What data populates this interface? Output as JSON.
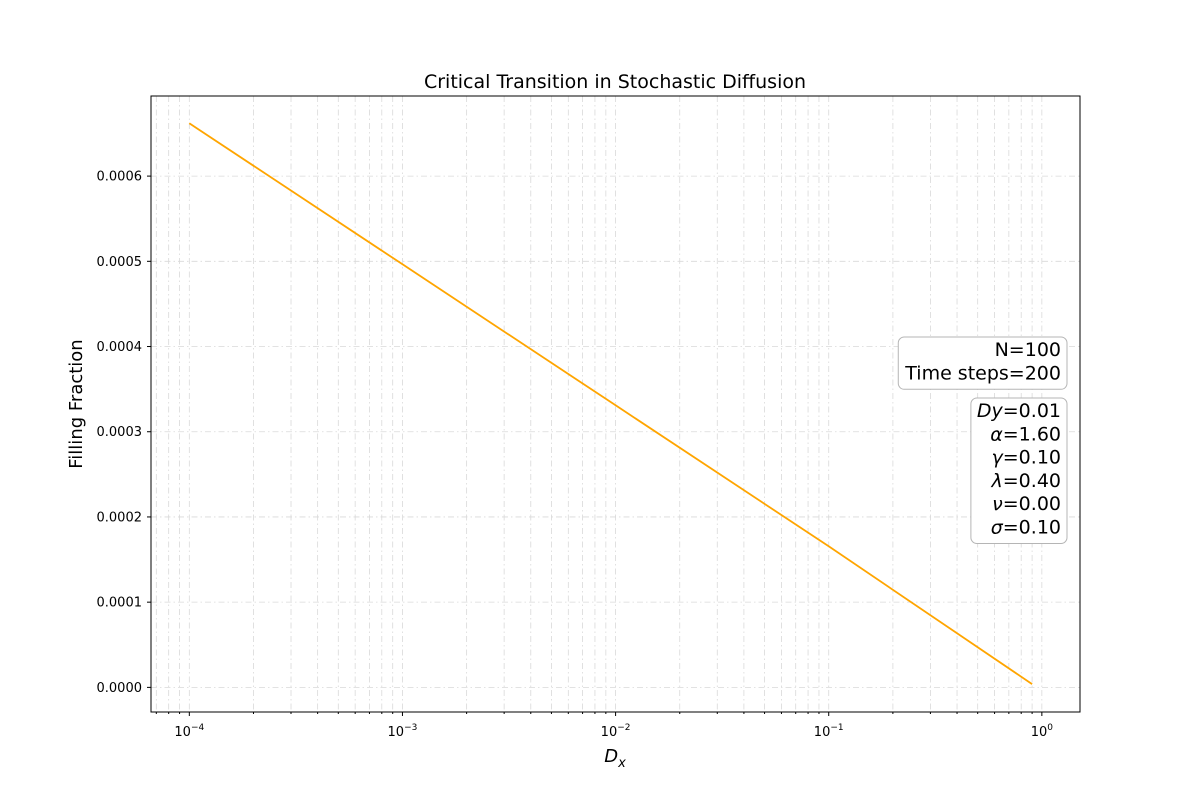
{
  "chart_data": {
    "type": "line",
    "title": "Critical Transition in Stochastic Diffusion",
    "xlabel": "D_x",
    "ylabel": "Filling Fraction",
    "xscale": "log",
    "xlim": [
      6.61e-05,
      1.51
    ],
    "ylim": [
      -2.89e-05,
      0.000694
    ],
    "grid": true,
    "x_ticks": [
      {
        "value": 0.0001,
        "base": "10",
        "exp": "−4"
      },
      {
        "value": 0.001,
        "base": "10",
        "exp": "−3"
      },
      {
        "value": 0.01,
        "base": "10",
        "exp": "−2"
      },
      {
        "value": 0.1,
        "base": "10",
        "exp": "−1"
      },
      {
        "value": 1,
        "base": "10",
        "exp": "0"
      }
    ],
    "y_ticks": [
      {
        "value": 0.0,
        "label": "0.0000"
      },
      {
        "value": 0.0001,
        "label": "0.0001"
      },
      {
        "value": 0.0002,
        "label": "0.0002"
      },
      {
        "value": 0.0003,
        "label": "0.0003"
      },
      {
        "value": 0.0004,
        "label": "0.0004"
      },
      {
        "value": 0.0005,
        "label": "0.0005"
      },
      {
        "value": 0.0006,
        "label": "0.0006"
      }
    ],
    "series": [
      {
        "color": "#FFA500",
        "x": [
          0.0001,
          0.001,
          0.01,
          0.1,
          0.9
        ],
        "y": [
          0.000662,
          0.0004965,
          0.000331,
          0.0001655,
          3.8e-06
        ]
      }
    ],
    "annotations": {
      "placement": "right",
      "box1": [
        "N=100",
        "Time steps=200"
      ],
      "box2": [
        {
          "symbol": "Dy",
          "value": "=0.01"
        },
        {
          "symbol": "α",
          "value": "=1.60"
        },
        {
          "symbol": "γ",
          "value": "=0.10"
        },
        {
          "symbol": "λ",
          "value": "=0.40"
        },
        {
          "symbol": "ν",
          "value": "=0.00"
        },
        {
          "symbol": "σ",
          "value": "=0.10"
        }
      ]
    }
  }
}
